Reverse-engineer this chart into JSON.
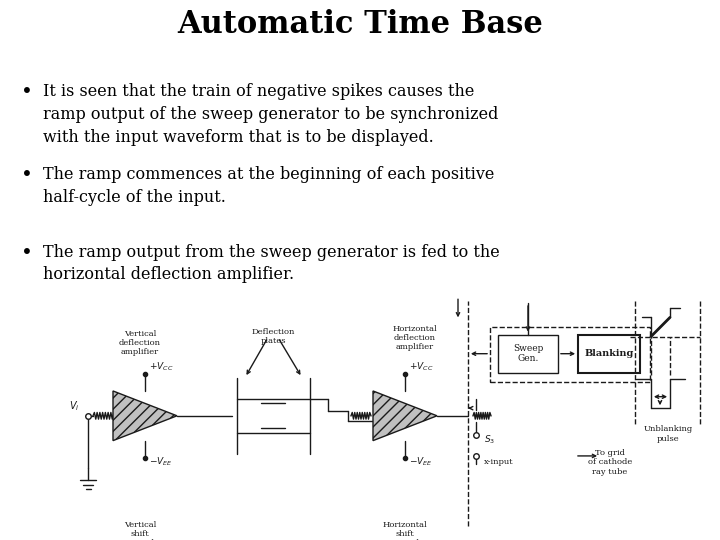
{
  "title": "Automatic Time Base",
  "title_fontsize": 22,
  "title_fontweight": "bold",
  "title_fontfamily": "serif",
  "background_color": "#ffffff",
  "text_color": "#000000",
  "bullet_points": [
    "It is seen that the train of negative spikes causes the\nramp output of the sweep generator to be synchronized\nwith the input waveform that is to be displayed.",
    "The ramp commences at the beginning of each positive\nhalf-cycle of the input.",
    "The ramp output from the sweep generator is fed to the\nhorizontal deflection amplifier."
  ],
  "bullet_fontsize": 11.5,
  "bullet_fontfamily": "serif",
  "fig_width": 7.2,
  "fig_height": 5.4,
  "fig_dpi": 100
}
